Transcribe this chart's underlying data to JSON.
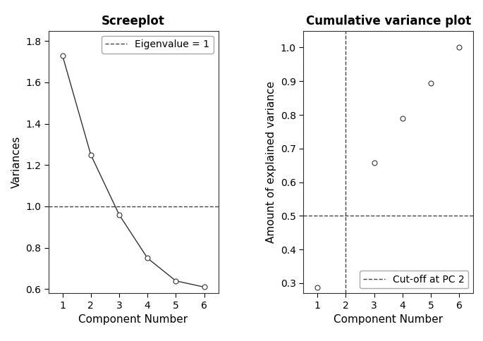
{
  "scree": {
    "title": "Screeplot",
    "x": [
      1,
      2,
      3,
      4,
      5,
      6
    ],
    "y": [
      1.73,
      1.25,
      0.96,
      0.75,
      0.64,
      0.61
    ],
    "xlabel": "Component Number",
    "ylabel": "Variances",
    "ylim": [
      0.58,
      1.85
    ],
    "yticks": [
      0.6,
      0.8,
      1.0,
      1.2,
      1.4,
      1.6,
      1.8
    ],
    "xlim": [
      0.5,
      6.5
    ],
    "xticks": [
      1,
      2,
      3,
      4,
      5,
      6
    ],
    "hline_y": 1.0,
    "hline_label": "Eigenvalue = 1"
  },
  "cumvar": {
    "title": "Cumulative variance plot",
    "x": [
      1,
      3,
      4,
      5,
      6
    ],
    "y": [
      0.288,
      0.657,
      0.789,
      0.894,
      1.0
    ],
    "xlabel": "Component Number",
    "ylabel": "Amount of explained variance",
    "ylim": [
      0.27,
      1.05
    ],
    "yticks": [
      0.3,
      0.4,
      0.5,
      0.6,
      0.7,
      0.8,
      0.9,
      1.0
    ],
    "xlim": [
      0.5,
      6.5
    ],
    "xticks": [
      1,
      2,
      3,
      4,
      5,
      6
    ],
    "hline_y": 0.5,
    "vline_x": 2.0,
    "legend_label": "Cut-off at PC 2"
  },
  "line_color": "#333333",
  "marker_facecolor": "white",
  "marker_edgecolor": "#333333",
  "marker_size": 5,
  "marker_linewidth": 0.8,
  "dashed_color": "#444444",
  "title_fontsize": 12,
  "label_fontsize": 11,
  "tick_fontsize": 10,
  "legend_fontsize": 10,
  "bg_color": "white",
  "spine_color": "#333333"
}
